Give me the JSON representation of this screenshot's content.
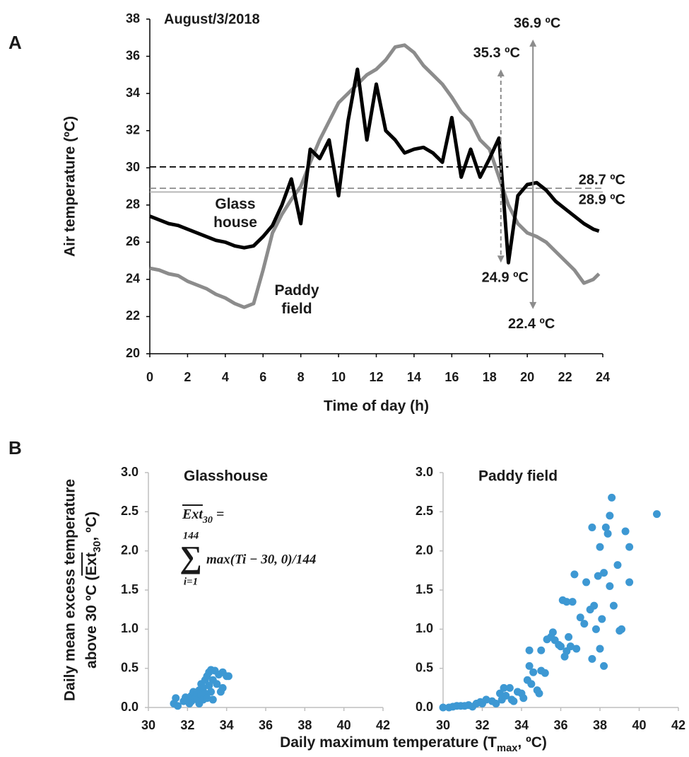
{
  "chart_data": [
    {
      "type": "line",
      "panel": "A",
      "date": "August/3/2018",
      "x_label": "Time of day (h)",
      "y_label": "Air temperature (ºC)",
      "xlim": [
        0,
        24
      ],
      "ylim": [
        20,
        38
      ],
      "xticks": [
        0,
        2,
        4,
        6,
        8,
        10,
        12,
        14,
        16,
        18,
        20,
        22,
        24
      ],
      "yticks": [
        20,
        22,
        24,
        26,
        28,
        30,
        32,
        34,
        36,
        38
      ],
      "x": [
        0,
        0.5,
        1,
        1.5,
        2,
        2.5,
        3,
        3.5,
        4,
        4.5,
        5,
        5.5,
        6,
        6.5,
        7,
        7.5,
        8,
        8.5,
        9,
        9.5,
        10,
        10.5,
        11,
        11.5,
        12,
        12.5,
        13,
        13.5,
        14,
        14.5,
        15,
        15.5,
        16,
        16.5,
        17,
        17.5,
        18,
        18.5,
        19,
        19.5,
        20,
        20.5,
        21,
        21.5,
        22,
        22.5,
        23,
        23.5,
        23.8
      ],
      "series": [
        {
          "name": "Paddy field",
          "color": "#8c8c8c",
          "values": [
            24.6,
            24.5,
            24.3,
            24.2,
            23.9,
            23.7,
            23.5,
            23.2,
            23.0,
            22.7,
            22.5,
            22.7,
            24.5,
            26.5,
            27.5,
            28.3,
            29.0,
            30.3,
            31.5,
            32.5,
            33.5,
            34.0,
            34.5,
            35.0,
            35.3,
            35.8,
            36.5,
            36.6,
            36.2,
            35.5,
            35.0,
            34.5,
            33.8,
            33.0,
            32.5,
            31.5,
            31.0,
            29.5,
            28.0,
            27.0,
            26.5,
            26.3,
            26.0,
            25.5,
            25.0,
            24.5,
            23.8,
            24.0,
            24.3
          ]
        },
        {
          "name": "Glass house",
          "color": "#000000",
          "values": [
            27.4,
            27.2,
            27.0,
            26.9,
            26.7,
            26.5,
            26.3,
            26.1,
            26.0,
            25.8,
            25.7,
            25.8,
            26.3,
            26.9,
            28.0,
            29.4,
            27.0,
            31.0,
            30.5,
            31.5,
            28.5,
            32.5,
            35.3,
            31.5,
            34.5,
            32.0,
            31.5,
            30.8,
            31.0,
            31.1,
            30.8,
            30.3,
            32.7,
            29.5,
            31.0,
            29.5,
            30.5,
            31.6,
            24.9,
            28.5,
            29.1,
            29.2,
            28.8,
            28.2,
            27.8,
            27.4,
            27.0,
            26.7,
            26.6
          ]
        }
      ],
      "reference_lines": [
        {
          "value": 30.05,
          "color": "#000000",
          "dashed": true,
          "span": [
            0,
            19
          ]
        },
        {
          "value": 28.9,
          "color": "#8c8c8c",
          "dashed": true,
          "span": [
            0,
            24
          ],
          "label": "28.9 ºC"
        },
        {
          "value": 28.7,
          "color": "#b0b0b0",
          "dashed": false,
          "span": [
            0,
            24
          ],
          "label": "28.7 ºC"
        }
      ],
      "ranges": [
        {
          "x": 18.6,
          "low": 24.9,
          "high": 35.3,
          "low_label": "24.9 ºC",
          "high_label": "35.3 ºC",
          "color": "#8c8c8c",
          "dashed": true
        },
        {
          "x": 20.3,
          "low": 22.4,
          "high": 36.9,
          "low_label": "22.4 ºC",
          "high_label": "36.9 ºC",
          "color": "#8c8c8c",
          "dashed": false
        }
      ]
    },
    {
      "type": "scatter",
      "panel": "B",
      "title": "Glasshouse",
      "color": "#3d98d3",
      "y_label": [
        "Daily mean excess temperature",
        [
          {
            "text": "above 30 ºC ("
          },
          {
            "text": "Ext",
            "over": true
          },
          {
            "text": "30",
            "sub": true
          },
          {
            "text": ", ºC)"
          }
        ]
      ],
      "formula": {
        "lhs": "Ext",
        "lhs_sub": "30",
        "eq": " =",
        "sum": "∑",
        "sum_top": "144",
        "sum_bottom": "i=1",
        "body": "max(Ti − 30, 0)/144"
      },
      "xlim": [
        30,
        42
      ],
      "ylim": [
        0,
        3
      ],
      "xticks": [
        30,
        32,
        34,
        36,
        38,
        40,
        42
      ],
      "yticks": [
        {
          "value": 0,
          "label": "0.0"
        },
        0.5,
        {
          "value": 1,
          "label": "1.0"
        },
        1.5,
        {
          "value": 2,
          "label": "2.0"
        },
        2.5,
        {
          "value": 3,
          "label": "3.0"
        }
      ],
      "x": [
        31.3,
        31.4,
        31.5,
        31.8,
        31.9,
        32.0,
        32.1,
        32.2,
        32.2,
        32.3,
        32.4,
        32.5,
        32.5,
        32.6,
        32.6,
        32.7,
        32.7,
        32.8,
        32.8,
        32.9,
        32.9,
        33.0,
        33.0,
        33.1,
        33.1,
        33.2,
        33.2,
        33.3,
        33.3,
        33.4,
        33.5,
        33.6,
        33.7,
        33.8,
        33.8,
        34.0,
        34.1
      ],
      "values": [
        0.05,
        0.12,
        0.02,
        0.08,
        0.13,
        0.1,
        0.05,
        0.15,
        0.08,
        0.2,
        0.12,
        0.18,
        0.1,
        0.05,
        0.22,
        0.15,
        0.3,
        0.1,
        0.25,
        0.35,
        0.18,
        0.4,
        0.12,
        0.28,
        0.45,
        0.48,
        0.2,
        0.35,
        0.1,
        0.47,
        0.3,
        0.42,
        0.2,
        0.25,
        0.45,
        0.4,
        0.4
      ]
    },
    {
      "type": "scatter",
      "title": "Paddy field",
      "color": "#3d98d3",
      "x_label": [
        {
          "text": "Daily maximum temperature (T"
        },
        {
          "text": "max",
          "sub": true
        },
        {
          "text": ", ºC)"
        }
      ],
      "xlim": [
        30,
        42
      ],
      "ylim": [
        0,
        3
      ],
      "xticks": [
        30,
        32,
        34,
        36,
        38,
        40,
        42
      ],
      "yticks": [
        {
          "value": 0,
          "label": "0.0"
        },
        0.5,
        {
          "value": 1,
          "label": "1.0"
        },
        1.5,
        {
          "value": 2,
          "label": "2.0"
        },
        2.5,
        {
          "value": 3,
          "label": "3.0"
        }
      ],
      "x": [
        30.0,
        30.3,
        30.5,
        30.7,
        30.9,
        31.1,
        31.3,
        31.5,
        31.7,
        31.9,
        32.0,
        32.2,
        32.5,
        32.7,
        32.9,
        33.0,
        33.1,
        33.2,
        33.4,
        33.5,
        33.6,
        33.8,
        34.0,
        34.1,
        34.3,
        34.4,
        34.4,
        34.5,
        34.6,
        34.8,
        34.9,
        35.0,
        35.0,
        35.2,
        35.3,
        35.5,
        35.6,
        35.7,
        35.9,
        36.0,
        36.1,
        36.2,
        36.3,
        36.3,
        36.4,
        36.5,
        36.6,
        36.7,
        36.8,
        37.0,
        37.2,
        37.3,
        37.5,
        37.6,
        37.6,
        37.7,
        37.8,
        37.9,
        38.0,
        38.0,
        38.1,
        38.2,
        38.2,
        38.3,
        38.4,
        38.5,
        38.5,
        38.6,
        38.7,
        38.9,
        39.0,
        39.1,
        39.3,
        39.5,
        39.5,
        40.9
      ],
      "values": [
        0.0,
        0.0,
        0.01,
        0.02,
        0.02,
        0.02,
        0.03,
        0.01,
        0.05,
        0.07,
        0.05,
        0.1,
        0.08,
        0.05,
        0.18,
        0.1,
        0.25,
        0.15,
        0.25,
        0.1,
        0.08,
        0.2,
        0.18,
        0.12,
        0.35,
        0.53,
        0.73,
        0.3,
        0.45,
        0.22,
        0.18,
        0.73,
        0.47,
        0.44,
        0.87,
        0.9,
        0.96,
        0.86,
        0.8,
        0.78,
        1.37,
        0.65,
        0.72,
        1.35,
        0.9,
        0.78,
        1.35,
        1.7,
        0.75,
        1.15,
        1.07,
        1.6,
        1.25,
        2.3,
        0.62,
        1.3,
        1.0,
        1.68,
        2.05,
        0.75,
        1.13,
        0.53,
        1.72,
        2.3,
        2.22,
        1.55,
        2.45,
        2.68,
        1.3,
        1.82,
        0.98,
        1.0,
        2.25,
        1.6,
        2.05,
        2.47
      ]
    }
  ]
}
